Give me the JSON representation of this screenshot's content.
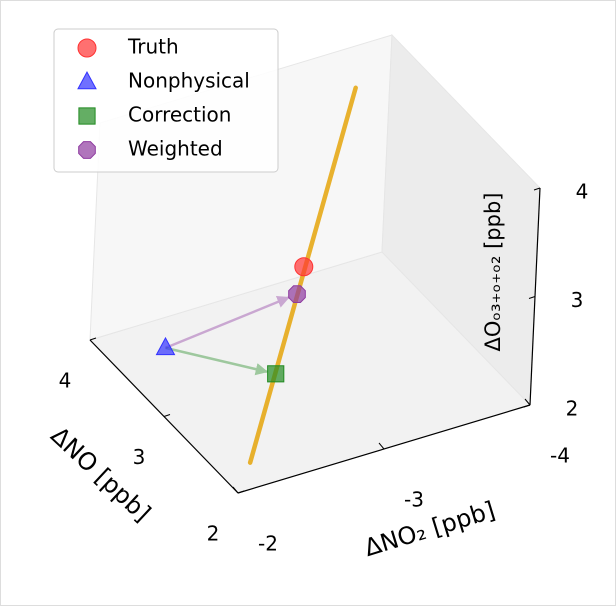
{
  "chart_data": {
    "type": "scatter3d",
    "xlabel": "ΔNO₂ [ppb]",
    "ylabel": "ΔNO [ppb]",
    "zlabel": "ΔOₒ₃₊ₒ₊ₒ₂ [ppb]",
    "xlim": [
      -2,
      -4
    ],
    "xticks": [
      -2,
      -3,
      -4
    ],
    "ylim": [
      2,
      4
    ],
    "yticks": [
      2,
      3,
      4
    ],
    "zlim": [
      2,
      4
    ],
    "zticks": [
      2,
      3,
      4
    ],
    "legend": "upper left",
    "curve": {
      "color": "#e6a817",
      "x": [
        -2.22,
        -3.07
      ],
      "y": [
        2.27,
        2.71
      ],
      "z": [
        2.0,
        4.8
      ]
    },
    "series": [
      {
        "name": "Truth",
        "color": "#ff3333",
        "marker": "circle",
        "x": [
          -2.81
        ],
        "y": [
          2.79
        ],
        "z": [
          3.2
        ]
      },
      {
        "name": "Nonphysical",
        "color": "#3333ff",
        "marker": "triangle",
        "x": [
          -2.36
        ],
        "y": [
          3.69
        ],
        "z": [
          2.0
        ]
      },
      {
        "name": "Correction",
        "color": "#228b22",
        "marker": "square",
        "x": [
          -2.52
        ],
        "y": [
          2.55
        ],
        "z": [
          2.5
        ]
      },
      {
        "name": "Weighted",
        "color": "#8e3aa0",
        "marker": "octagon",
        "x": [
          -2.75
        ],
        "y": [
          2.75
        ],
        "z": [
          3.0
        ]
      }
    ]
  }
}
